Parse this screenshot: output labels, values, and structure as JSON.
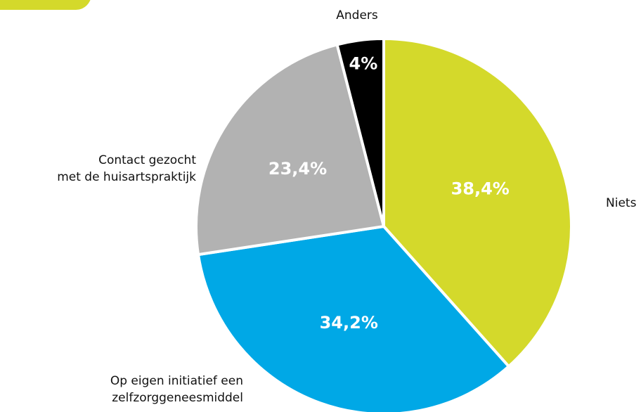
{
  "chart_data": {
    "type": "pie",
    "categories": [
      "Niets",
      "Op eigen initiatief een\nzelfzorggeneesmiddel",
      "Contact gezocht\nmet de huisartspraktijk",
      "Anders"
    ],
    "values": [
      38.4,
      34.2,
      23.4,
      4
    ],
    "value_labels": [
      "38,4%",
      "34,2%",
      "23,4%",
      "4%"
    ],
    "colors": [
      "#d4d92b",
      "#00a8e6",
      "#b2b2b2",
      "#000000"
    ]
  }
}
